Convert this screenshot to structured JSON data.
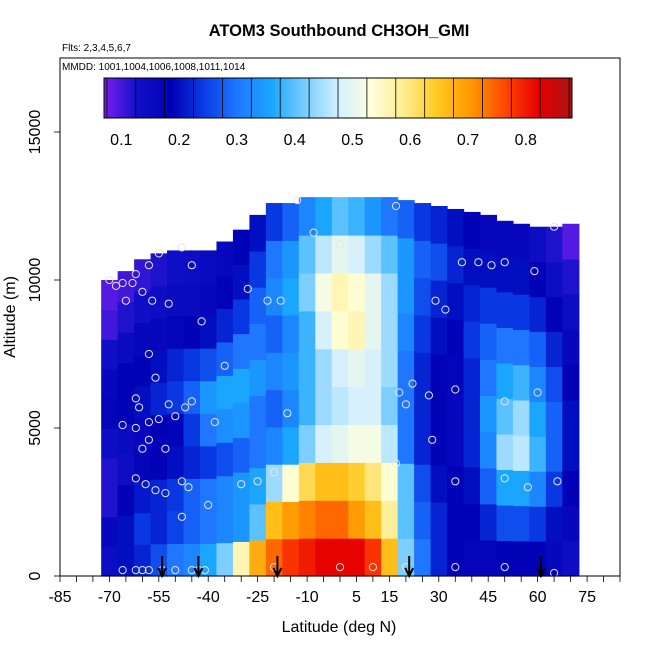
{
  "chart_data": {
    "type": "heatmap",
    "title": "ATOM3 Southbound CH3OH_GMI",
    "subtitle_flights": "Flts: 2,3,4,5,6,7",
    "subtitle_dates": "MMDD: 1001,1004,1006,1008,1011,1014",
    "xlabel": "Latitude (deg N)",
    "ylabel": "Altitude (m)",
    "xlim": [
      -85,
      85
    ],
    "ylim": [
      0,
      17500
    ],
    "x_ticks": [
      -85,
      -70,
      -55,
      -40,
      -25,
      -10,
      5,
      15,
      30,
      45,
      60,
      75
    ],
    "y_ticks": [
      0,
      5000,
      10000,
      15000
    ],
    "colorbar": {
      "range": [
        0.07,
        0.88
      ],
      "ticks": [
        0.1,
        0.2,
        0.3,
        0.4,
        0.5,
        0.6,
        0.7,
        0.8
      ],
      "colors": [
        "#7a1ff0",
        "#1010c8",
        "#0000b4",
        "#0a3ce6",
        "#1e78ff",
        "#19a5ff",
        "#78cdff",
        "#d2f0ff",
        "#ffffdc",
        "#ffeb8c",
        "#ffc81e",
        "#ff9600",
        "#ff4600",
        "#e60000",
        "#aa1414"
      ]
    },
    "profile_latitudes": [
      -70,
      -65,
      -60,
      -55,
      -50,
      -45,
      -40,
      -35,
      -30,
      -25,
      -20,
      -15,
      -10,
      -5,
      0,
      5,
      10,
      15,
      20,
      25,
      30,
      35,
      40,
      45,
      50,
      55,
      60,
      65,
      70
    ],
    "profile_altitude_ranges": [
      [
        0,
        10000
      ],
      [
        0,
        10300
      ],
      [
        0,
        10700
      ],
      [
        0,
        10900
      ],
      [
        0,
        11000
      ],
      [
        0,
        11000
      ],
      [
        0,
        11000
      ],
      [
        0,
        11300
      ],
      [
        0,
        11700
      ],
      [
        0,
        12200
      ],
      [
        0,
        12600
      ],
      [
        0,
        12600
      ],
      [
        0,
        12800
      ],
      [
        0,
        12800
      ],
      [
        0,
        12800
      ],
      [
        0,
        12800
      ],
      [
        0,
        12800
      ],
      [
        0,
        12800
      ],
      [
        0,
        12700
      ],
      [
        0,
        12600
      ],
      [
        0,
        12500
      ],
      [
        0,
        12400
      ],
      [
        0,
        12300
      ],
      [
        0,
        12200
      ],
      [
        0,
        12000
      ],
      [
        0,
        11900
      ],
      [
        0,
        11800
      ],
      [
        0,
        11800
      ],
      [
        0,
        11900
      ]
    ],
    "profile_values": [
      [
        0.14,
        0.16,
        0.12,
        0.12,
        0.14,
        0.17,
        0.16,
        0.13,
        0.1,
        0.09
      ],
      [
        0.2,
        0.2,
        0.18,
        0.14,
        0.15,
        0.18,
        0.18,
        0.15,
        0.12,
        0.1
      ],
      [
        0.22,
        0.24,
        0.21,
        0.17,
        0.16,
        0.2,
        0.18,
        0.16,
        0.13,
        0.11
      ],
      [
        0.26,
        0.22,
        0.22,
        0.18,
        0.18,
        0.22,
        0.2,
        0.16,
        0.14,
        0.12
      ],
      [
        0.3,
        0.25,
        0.24,
        0.2,
        0.19,
        0.24,
        0.22,
        0.17,
        0.15,
        0.13
      ],
      [
        0.32,
        0.28,
        0.28,
        0.22,
        0.24,
        0.28,
        0.24,
        0.18,
        0.15,
        0.14
      ],
      [
        0.36,
        0.3,
        0.3,
        0.24,
        0.3,
        0.34,
        0.26,
        0.2,
        0.16,
        0.15
      ],
      [
        0.42,
        0.32,
        0.32,
        0.26,
        0.33,
        0.36,
        0.28,
        0.22,
        0.18,
        0.16
      ],
      [
        0.56,
        0.34,
        0.34,
        0.28,
        0.34,
        0.36,
        0.3,
        0.24,
        0.2,
        0.18
      ],
      [
        0.68,
        0.4,
        0.36,
        0.3,
        0.3,
        0.34,
        0.3,
        0.28,
        0.24,
        0.2
      ],
      [
        0.74,
        0.66,
        0.44,
        0.32,
        0.28,
        0.32,
        0.28,
        0.32,
        0.3,
        0.24
      ],
      [
        0.78,
        0.7,
        0.54,
        0.36,
        0.32,
        0.34,
        0.32,
        0.36,
        0.34,
        0.28
      ],
      [
        0.8,
        0.72,
        0.62,
        0.42,
        0.38,
        0.38,
        0.38,
        0.42,
        0.4,
        0.32
      ],
      [
        0.82,
        0.74,
        0.66,
        0.48,
        0.44,
        0.44,
        0.48,
        0.52,
        0.46,
        0.36
      ],
      [
        0.82,
        0.74,
        0.66,
        0.5,
        0.46,
        0.48,
        0.54,
        0.56,
        0.5,
        0.4
      ],
      [
        0.82,
        0.7,
        0.64,
        0.52,
        0.48,
        0.5,
        0.56,
        0.54,
        0.48,
        0.38
      ],
      [
        0.78,
        0.66,
        0.6,
        0.52,
        0.48,
        0.48,
        0.5,
        0.5,
        0.44,
        0.34
      ],
      [
        0.66,
        0.58,
        0.54,
        0.46,
        0.42,
        0.44,
        0.44,
        0.44,
        0.4,
        0.3
      ],
      [
        0.42,
        0.4,
        0.4,
        0.3,
        0.3,
        0.3,
        0.32,
        0.34,
        0.34,
        0.28
      ],
      [
        0.3,
        0.28,
        0.26,
        0.22,
        0.22,
        0.22,
        0.24,
        0.26,
        0.28,
        0.24
      ],
      [
        0.22,
        0.22,
        0.2,
        0.18,
        0.18,
        0.18,
        0.2,
        0.22,
        0.26,
        0.22
      ],
      [
        0.18,
        0.18,
        0.18,
        0.16,
        0.16,
        0.17,
        0.18,
        0.2,
        0.22,
        0.2
      ],
      [
        0.17,
        0.18,
        0.2,
        0.22,
        0.22,
        0.22,
        0.24,
        0.22,
        0.2,
        0.18
      ],
      [
        0.17,
        0.22,
        0.28,
        0.32,
        0.34,
        0.3,
        0.28,
        0.24,
        0.2,
        0.16
      ],
      [
        0.18,
        0.26,
        0.36,
        0.44,
        0.4,
        0.36,
        0.3,
        0.24,
        0.2,
        0.16
      ],
      [
        0.18,
        0.26,
        0.36,
        0.46,
        0.44,
        0.38,
        0.3,
        0.24,
        0.2,
        0.16
      ],
      [
        0.18,
        0.24,
        0.32,
        0.38,
        0.36,
        0.32,
        0.28,
        0.22,
        0.18,
        0.14
      ],
      [
        0.16,
        0.2,
        0.24,
        0.28,
        0.28,
        0.26,
        0.22,
        0.18,
        0.14,
        0.12
      ],
      [
        0.14,
        0.16,
        0.18,
        0.2,
        0.2,
        0.18,
        0.16,
        0.14,
        0.12,
        0.09
      ]
    ],
    "sample_points": [
      [
        -70,
        10000
      ],
      [
        -68,
        9800
      ],
      [
        -66,
        9900
      ],
      [
        -63,
        9900
      ],
      [
        -62,
        10200
      ],
      [
        -58,
        10500
      ],
      [
        -55,
        10900
      ],
      [
        -48,
        11100
      ],
      [
        -45,
        10500
      ],
      [
        -60,
        9600
      ],
      [
        -65,
        9300
      ],
      [
        -57,
        9300
      ],
      [
        -52,
        9200
      ],
      [
        -42,
        8600
      ],
      [
        -28,
        9700
      ],
      [
        -22,
        9300
      ],
      [
        -18,
        9300
      ],
      [
        -58,
        7500
      ],
      [
        -56,
        6700
      ],
      [
        -35,
        7100
      ],
      [
        -62,
        6000
      ],
      [
        -61,
        5700
      ],
      [
        -52,
        5800
      ],
      [
        -45,
        5900
      ],
      [
        -47,
        5700
      ],
      [
        -50,
        5400
      ],
      [
        -55,
        5300
      ],
      [
        -58,
        5200
      ],
      [
        -66,
        5100
      ],
      [
        -62,
        5000
      ],
      [
        -58,
        4600
      ],
      [
        -60,
        4300
      ],
      [
        -53,
        4300
      ],
      [
        -38,
        5200
      ],
      [
        -62,
        3300
      ],
      [
        -59,
        3100
      ],
      [
        -56,
        2900
      ],
      [
        -53,
        2800
      ],
      [
        -48,
        3200
      ],
      [
        -46,
        3000
      ],
      [
        -40,
        2400
      ],
      [
        -30,
        3100
      ],
      [
        -25,
        3200
      ],
      [
        -20,
        3500
      ],
      [
        -48,
        2000
      ],
      [
        -66,
        200
      ],
      [
        -62,
        200
      ],
      [
        -60,
        200
      ],
      [
        -58,
        200
      ],
      [
        -54,
        200
      ],
      [
        -50,
        200
      ],
      [
        -45,
        200
      ],
      [
        -43,
        200
      ],
      [
        -41,
        200
      ],
      [
        -13,
        12700
      ],
      [
        -8,
        11600
      ],
      [
        0,
        11200
      ],
      [
        5,
        11100
      ],
      [
        17,
        12500
      ],
      [
        18,
        6200
      ],
      [
        22,
        6500
      ],
      [
        20,
        5800
      ],
      [
        17,
        3800
      ],
      [
        27,
        6100
      ],
      [
        28,
        4600
      ],
      [
        35,
        6300
      ],
      [
        37,
        10600
      ],
      [
        42,
        10600
      ],
      [
        46,
        10500
      ],
      [
        50,
        10600
      ],
      [
        59,
        10300
      ],
      [
        65,
        11800
      ],
      [
        32,
        9000
      ],
      [
        29,
        9300
      ],
      [
        50,
        5900
      ],
      [
        60,
        6200
      ],
      [
        50,
        3300
      ],
      [
        57,
        3000
      ],
      [
        66,
        3200
      ],
      [
        35,
        3200
      ],
      [
        -16,
        5500
      ],
      [
        -20,
        300
      ],
      [
        0,
        300
      ],
      [
        10,
        300
      ],
      [
        20,
        300
      ],
      [
        35,
        300
      ],
      [
        50,
        300
      ],
      [
        65,
        100
      ]
    ],
    "flight_marker_latitudes": [
      -54,
      -43,
      -19,
      21,
      61
    ]
  }
}
